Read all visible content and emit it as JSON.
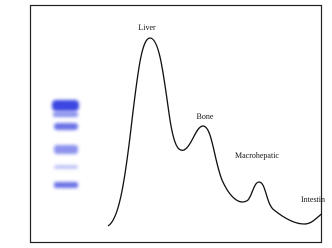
{
  "peaks": [
    {
      "label": "Liver"
    },
    {
      "label": "Bone"
    },
    {
      "label": "Macrohepatic"
    },
    {
      "label": "Intestin"
    }
  ]
}
